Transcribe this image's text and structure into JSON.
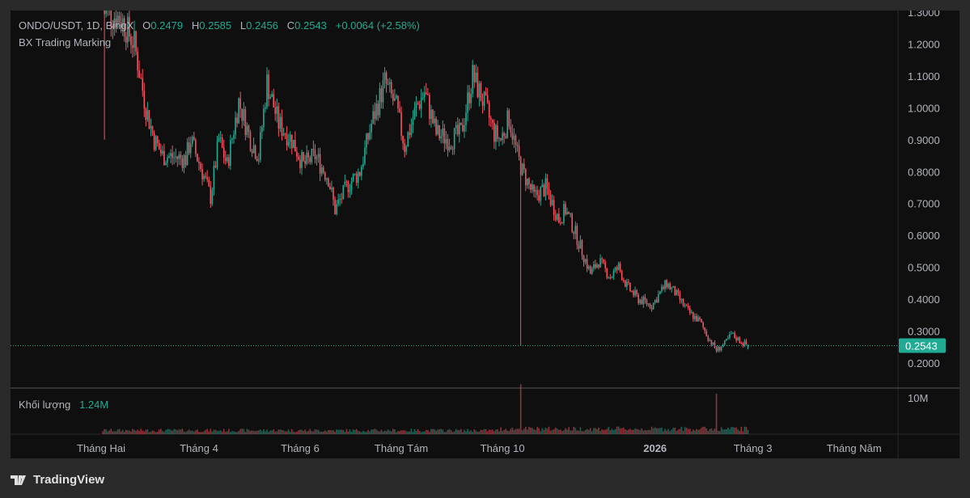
{
  "legend": {
    "symbol": "ONDO/USDT, 1D, BingX",
    "open_label": "O",
    "open": "0.2479",
    "high_label": "H",
    "high": "0.2585",
    "low_label": "L",
    "low": "0.2456",
    "close_label": "C",
    "close": "0.2543",
    "change": "+0.0064 (+2.58%)",
    "indicator": "BX Trading Marking"
  },
  "volume": {
    "label": "Khối lượng",
    "value": "1.24M",
    "axis_label": "10M"
  },
  "price_badge": "0.2543",
  "colors": {
    "up": "#22ab94",
    "down": "#f7525f",
    "badge": "#22ab94"
  },
  "footer": {
    "brand": "TradingView"
  },
  "chart_data": {
    "type": "candlestick",
    "price_ticks": [
      "1.3000",
      "1.2000",
      "1.1000",
      "1.0000",
      "0.9000",
      "0.8000",
      "0.7000",
      "0.6000",
      "0.5000",
      "0.4000",
      "0.3000",
      "0.2000"
    ],
    "ylim": [
      0.2,
      1.3
    ],
    "time_ticks": [
      {
        "label": "Tháng Hai",
        "day": 0
      },
      {
        "label": "Tháng 4",
        "day": 59
      },
      {
        "label": "Tháng 6",
        "day": 120
      },
      {
        "label": "Tháng Tám",
        "day": 181
      },
      {
        "label": "Tháng 10",
        "day": 242
      },
      {
        "label": "2026",
        "day": 334
      },
      {
        "label": "Tháng 3",
        "day": 393
      },
      {
        "label": "Tháng Năm",
        "day": 454
      }
    ],
    "close_keypoints": [
      [
        1,
        1.32
      ],
      [
        2,
        1.3
      ],
      [
        12,
        1.28
      ],
      [
        20,
        1.2
      ],
      [
        27,
        1.0
      ],
      [
        32,
        0.9
      ],
      [
        37,
        0.85
      ],
      [
        51,
        0.84
      ],
      [
        54,
        0.9
      ],
      [
        61,
        0.8
      ],
      [
        66,
        0.72
      ],
      [
        71,
        0.9
      ],
      [
        76,
        0.82
      ],
      [
        83,
        1.02
      ],
      [
        90,
        0.9
      ],
      [
        95,
        0.85
      ],
      [
        100,
        1.08
      ],
      [
        107,
        0.95
      ],
      [
        115,
        0.9
      ],
      [
        122,
        0.82
      ],
      [
        129,
        0.85
      ],
      [
        137,
        0.78
      ],
      [
        141,
        0.68
      ],
      [
        149,
        0.76
      ],
      [
        156,
        0.8
      ],
      [
        163,
        0.95
      ],
      [
        171,
        1.08
      ],
      [
        178,
        1.0
      ],
      [
        183,
        0.88
      ],
      [
        190,
        1.0
      ],
      [
        195,
        1.05
      ],
      [
        202,
        0.92
      ],
      [
        210,
        0.9
      ],
      [
        217,
        0.92
      ],
      [
        224,
        1.1
      ],
      [
        232,
        1.0
      ],
      [
        237,
        0.92
      ],
      [
        241,
        0.9
      ],
      [
        246,
        0.97
      ],
      [
        251,
        0.85
      ],
      [
        254,
        0.8
      ],
      [
        256,
        0.78
      ],
      [
        261,
        0.72
      ],
      [
        268,
        0.75
      ],
      [
        276,
        0.65
      ],
      [
        280,
        0.68
      ],
      [
        285,
        0.62
      ],
      [
        290,
        0.55
      ],
      [
        295,
        0.48
      ],
      [
        300,
        0.52
      ],
      [
        307,
        0.47
      ],
      [
        312,
        0.5
      ],
      [
        317,
        0.44
      ],
      [
        324,
        0.4
      ],
      [
        332,
        0.38
      ],
      [
        337,
        0.42
      ],
      [
        341,
        0.45
      ],
      [
        346,
        0.42
      ],
      [
        354,
        0.36
      ],
      [
        361,
        0.33
      ],
      [
        366,
        0.28
      ],
      [
        371,
        0.24
      ],
      [
        376,
        0.26
      ],
      [
        380,
        0.29
      ],
      [
        385,
        0.27
      ],
      [
        390,
        0.2543
      ]
    ],
    "notable_wicks": [
      {
        "day": 2,
        "low": 0.9
      },
      {
        "day": 253,
        "low": 0.255
      }
    ],
    "volume_spikes": [
      {
        "day": 253,
        "value_m": 10.5
      },
      {
        "day": 371,
        "value_m": 8.5
      }
    ]
  }
}
